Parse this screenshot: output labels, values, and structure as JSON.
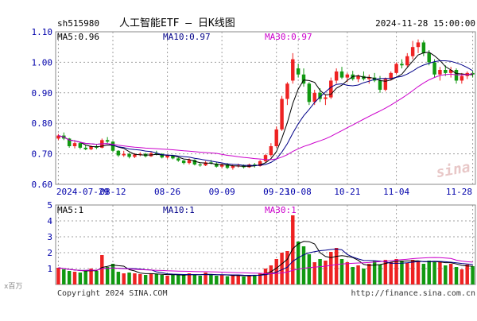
{
  "header": {
    "symbol": "sh515980",
    "title": "人工智能ETF — 日K线图",
    "datetime": "2024-11-28 15:00:00"
  },
  "footer": {
    "copyright": "Copyright 2024 SINA.COM",
    "url": "http://finance.sina.com.cn"
  },
  "watermark": "sina",
  "colors": {
    "up": "#ee2222",
    "down": "#119911",
    "ma5": "#000000",
    "ma10": "#000088",
    "ma30": "#cc00cc",
    "grid": "#a0a0a0",
    "axis_text": "#0000aa"
  },
  "chart_data": [
    {
      "type": "candlestick",
      "name": "price",
      "ylim": [
        0.6,
        1.1
      ],
      "y_ticks": [
        "1.10",
        "1.00",
        "0.90",
        "0.80",
        "0.70",
        "0.60"
      ],
      "x_ticks": [
        "2024-07-29",
        "08-12",
        "08-26",
        "09-09",
        "09-23",
        "10-08",
        "10-21",
        "11-04",
        "11-28"
      ],
      "ma_labels": {
        "ma5": "MA5:0.96",
        "ma10": "MA10:0.97",
        "ma30": "MA30:0.97"
      },
      "candles": [
        [
          0.75,
          0.765,
          0.745,
          0.76
        ],
        [
          0.76,
          0.77,
          0.745,
          0.75
        ],
        [
          0.75,
          0.752,
          0.72,
          0.725
        ],
        [
          0.725,
          0.74,
          0.718,
          0.735
        ],
        [
          0.735,
          0.738,
          0.715,
          0.72
        ],
        [
          0.72,
          0.728,
          0.712,
          0.715
        ],
        [
          0.715,
          0.728,
          0.712,
          0.725
        ],
        [
          0.725,
          0.732,
          0.715,
          0.72
        ],
        [
          0.72,
          0.75,
          0.718,
          0.745
        ],
        [
          0.745,
          0.755,
          0.735,
          0.74
        ],
        [
          0.74,
          0.742,
          0.705,
          0.71
        ],
        [
          0.71,
          0.712,
          0.69,
          0.695
        ],
        [
          0.695,
          0.71,
          0.69,
          0.7
        ],
        [
          0.7,
          0.703,
          0.685,
          0.69
        ],
        [
          0.69,
          0.702,
          0.686,
          0.698
        ],
        [
          0.698,
          0.705,
          0.692,
          0.7
        ],
        [
          0.7,
          0.703,
          0.688,
          0.692
        ],
        [
          0.692,
          0.706,
          0.69,
          0.702
        ],
        [
          0.702,
          0.71,
          0.695,
          0.7
        ],
        [
          0.7,
          0.702,
          0.685,
          0.688
        ],
        [
          0.688,
          0.698,
          0.684,
          0.695
        ],
        [
          0.695,
          0.697,
          0.682,
          0.685
        ],
        [
          0.685,
          0.688,
          0.674,
          0.678
        ],
        [
          0.678,
          0.68,
          0.665,
          0.67
        ],
        [
          0.67,
          0.685,
          0.665,
          0.68
        ],
        [
          0.68,
          0.682,
          0.662,
          0.665
        ],
        [
          0.665,
          0.67,
          0.658,
          0.662
        ],
        [
          0.662,
          0.676,
          0.66,
          0.672
        ],
        [
          0.672,
          0.68,
          0.665,
          0.668
        ],
        [
          0.668,
          0.672,
          0.655,
          0.658
        ],
        [
          0.658,
          0.668,
          0.652,
          0.665
        ],
        [
          0.665,
          0.67,
          0.65,
          0.654
        ],
        [
          0.654,
          0.664,
          0.648,
          0.66
        ],
        [
          0.66,
          0.668,
          0.655,
          0.662
        ],
        [
          0.662,
          0.665,
          0.652,
          0.656
        ],
        [
          0.656,
          0.668,
          0.654,
          0.665
        ],
        [
          0.665,
          0.67,
          0.655,
          0.66
        ],
        [
          0.66,
          0.68,
          0.658,
          0.676
        ],
        [
          0.676,
          0.7,
          0.672,
          0.696
        ],
        [
          0.696,
          0.735,
          0.69,
          0.725
        ],
        [
          0.725,
          0.79,
          0.72,
          0.78
        ],
        [
          0.78,
          0.89,
          0.775,
          0.88
        ],
        [
          0.88,
          0.935,
          0.86,
          0.93
        ],
        [
          0.94,
          1.03,
          0.93,
          1.01
        ],
        [
          0.98,
          0.995,
          0.95,
          0.96
        ],
        [
          0.96,
          0.98,
          0.92,
          0.93
        ],
        [
          0.93,
          0.935,
          0.86,
          0.87
        ],
        [
          0.87,
          0.91,
          0.86,
          0.9
        ],
        [
          0.9,
          0.915,
          0.87,
          0.88
        ],
        [
          0.88,
          0.895,
          0.86,
          0.885
        ],
        [
          0.885,
          0.95,
          0.88,
          0.94
        ],
        [
          0.94,
          0.98,
          0.93,
          0.97
        ],
        [
          0.97,
          0.985,
          0.945,
          0.95
        ],
        [
          0.95,
          0.965,
          0.935,
          0.96
        ],
        [
          0.96,
          0.972,
          0.94,
          0.945
        ],
        [
          0.945,
          0.96,
          0.935,
          0.955
        ],
        [
          0.955,
          0.97,
          0.94,
          0.945
        ],
        [
          0.945,
          0.96,
          0.93,
          0.95
        ],
        [
          0.95,
          0.965,
          0.935,
          0.94
        ],
        [
          0.94,
          0.955,
          0.9,
          0.91
        ],
        [
          0.91,
          0.95,
          0.905,
          0.945
        ],
        [
          0.945,
          0.97,
          0.94,
          0.965
        ],
        [
          0.965,
          1.0,
          0.96,
          0.995
        ],
        [
          0.995,
          1.01,
          0.98,
          0.99
        ],
        [
          0.99,
          1.03,
          0.985,
          1.02
        ],
        [
          1.02,
          1.07,
          1.01,
          1.05
        ],
        [
          1.05,
          1.075,
          1.03,
          1.065
        ],
        [
          1.065,
          1.072,
          1.02,
          1.03
        ],
        [
          1.03,
          1.04,
          0.99,
          1.0
        ],
        [
          1.0,
          1.01,
          0.95,
          0.96
        ],
        [
          0.96,
          0.985,
          0.94,
          0.975
        ],
        [
          0.975,
          0.99,
          0.955,
          0.965
        ],
        [
          0.965,
          0.985,
          0.95,
          0.975
        ],
        [
          0.975,
          0.98,
          0.93,
          0.94
        ],
        [
          0.94,
          0.965,
          0.93,
          0.955
        ],
        [
          0.955,
          0.97,
          0.945,
          0.965
        ],
        [
          0.965,
          0.972,
          0.95,
          0.96
        ]
      ]
    },
    {
      "type": "bar",
      "name": "volume",
      "ylim": [
        0,
        5
      ],
      "y_ticks": [
        "5",
        "4",
        "3",
        "2",
        "1"
      ],
      "unit": "x百万",
      "ma_labels": {
        "ma5": "MA5:1",
        "ma10": "MA10:1",
        "ma30": "MA30:1"
      },
      "values": [
        1.05,
        0.95,
        0.85,
        0.8,
        0.75,
        0.9,
        1.0,
        0.85,
        1.85,
        1.1,
        1.3,
        0.8,
        0.7,
        0.75,
        0.7,
        0.65,
        0.6,
        0.7,
        0.65,
        0.6,
        0.55,
        0.6,
        0.62,
        0.58,
        0.7,
        0.6,
        0.55,
        0.75,
        0.6,
        0.55,
        0.58,
        0.52,
        0.55,
        0.6,
        0.5,
        0.55,
        0.6,
        0.7,
        1.0,
        1.2,
        1.6,
        2.0,
        2.1,
        4.35,
        2.7,
        2.4,
        1.9,
        1.4,
        1.6,
        1.5,
        2.05,
        2.3,
        1.6,
        1.4,
        1.1,
        1.2,
        1.0,
        1.3,
        1.5,
        1.25,
        1.55,
        1.4,
        1.6,
        1.5,
        1.35,
        1.55,
        1.45,
        1.3,
        1.5,
        1.4,
        1.45,
        1.2,
        1.3,
        1.1,
        0.95,
        1.25,
        1.15
      ]
    }
  ]
}
